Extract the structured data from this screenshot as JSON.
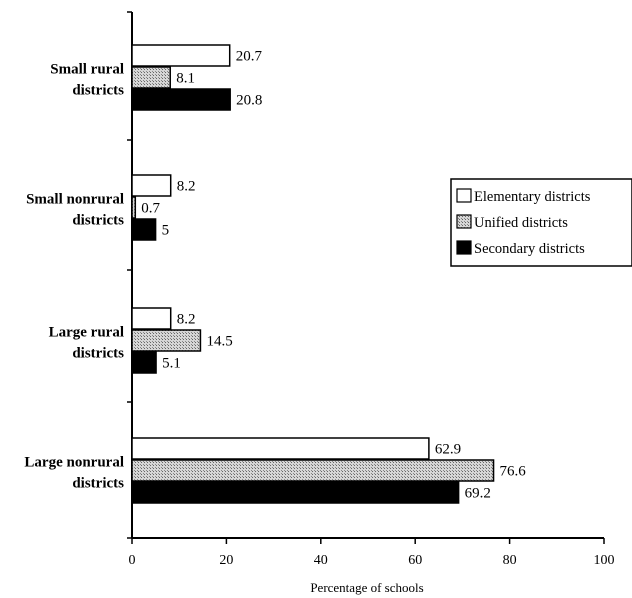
{
  "chart_data": {
    "type": "bar",
    "orientation": "horizontal",
    "categories": [
      [
        "Small rural",
        "districts"
      ],
      [
        "Small nonrural",
        "districts"
      ],
      [
        "Large rural",
        "districts"
      ],
      [
        "Large nonrural",
        "districts"
      ]
    ],
    "series": [
      {
        "name": "Elementary districts",
        "values": [
          20.7,
          8.2,
          8.2,
          62.9
        ],
        "labels": [
          "20.7",
          "8.2",
          "8.2",
          "62.9"
        ],
        "fill": "white"
      },
      {
        "name": "Unified districts",
        "values": [
          8.1,
          0.7,
          14.5,
          76.6
        ],
        "labels": [
          "8.1",
          "0.7",
          "14.5",
          "76.6"
        ],
        "fill": "hatched"
      },
      {
        "name": "Secondary districts",
        "values": [
          20.8,
          5,
          5.1,
          69.2
        ],
        "labels": [
          "20.8",
          "5",
          "5.1",
          "69.2"
        ],
        "fill": "black"
      }
    ],
    "xlim": [
      0,
      100
    ],
    "xticks": [
      "0",
      "20",
      "40",
      "60",
      "80",
      "100"
    ],
    "xlabel": "Percentage of schools",
    "ylabel": "",
    "title": "",
    "grid": false,
    "legend_position": "right"
  }
}
